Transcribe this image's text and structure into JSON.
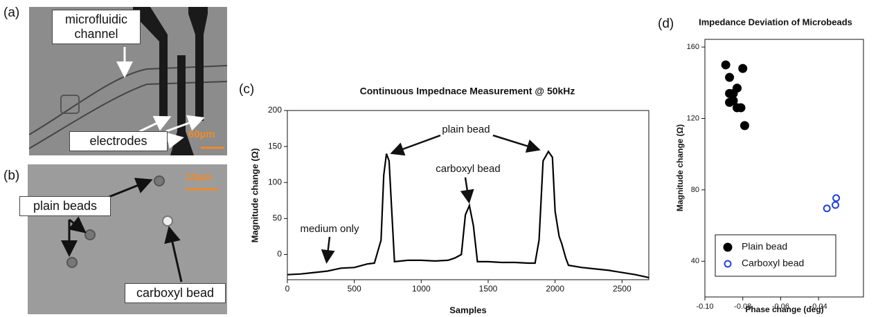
{
  "panels": [
    {
      "label": "(a)",
      "annotations": [
        "microfluidic channel",
        "electrodes"
      ],
      "scale_bar": "60µm"
    },
    {
      "label": "(b)",
      "annotations": [
        "plain beads",
        "carboxyl bead"
      ],
      "scale_bar": "10µm"
    }
  ],
  "chart_data": [
    {
      "type": "line",
      "panel_label": "(c)",
      "title": "Continuous Impednace Measurement @ 50kHz",
      "x_label": "Samples",
      "y_label": "Magnitude change (Ω)",
      "annotations": [
        "plain bead",
        "carboxyl bead",
        "medium only"
      ],
      "x": [
        0,
        100,
        200,
        300,
        400,
        500,
        600,
        650,
        700,
        720,
        740,
        760,
        780,
        800,
        900,
        1000,
        1100,
        1200,
        1250,
        1300,
        1330,
        1360,
        1390,
        1420,
        1500,
        1600,
        1700,
        1800,
        1850,
        1880,
        1910,
        1950,
        1980,
        2000,
        2030,
        2050,
        2080,
        2100,
        2200,
        2300,
        2400,
        2500,
        2600,
        2700
      ],
      "values": [
        -28,
        -27,
        -25,
        -23,
        -19,
        -18,
        -13,
        -12,
        20,
        110,
        140,
        130,
        60,
        -10,
        -8,
        -8,
        -9,
        -8,
        -5,
        0,
        55,
        68,
        40,
        -10,
        -10,
        -11,
        -11,
        -12,
        -12,
        20,
        130,
        143,
        135,
        60,
        25,
        15,
        -5,
        -15,
        -18,
        -20,
        -22,
        -25,
        -28,
        -32
      ],
      "color": "#000000",
      "xlim": [
        0,
        2700
      ],
      "xticks": [
        0,
        500,
        1000,
        1500,
        2000,
        2500
      ],
      "ylim": [
        -35,
        200
      ],
      "yticks": [
        0,
        50,
        100,
        150,
        200
      ]
    },
    {
      "type": "scatter",
      "panel_label": "(d)",
      "title": "Impedance Deviation of Microbeads",
      "x_label": "Phase change (deg)",
      "y_label": "Magnitude change (Ω)",
      "series": [
        {
          "name": "Plain bead",
          "color": "#000000",
          "marker": "filled",
          "x": [
            -0.089,
            -0.08,
            -0.087,
            -0.087,
            -0.085,
            -0.083,
            -0.087,
            -0.085,
            -0.083,
            -0.081,
            -0.079
          ],
          "values": [
            150,
            148,
            143,
            134,
            134,
            137,
            129,
            130,
            126,
            126,
            116
          ]
        },
        {
          "name": "Carboxyl bead",
          "color": "#1f3fe0",
          "marker": "open",
          "x": [
            -0.0356,
            -0.0311,
            -0.0307
          ],
          "values": [
            69.6,
            71.5,
            75.4
          ]
        }
      ],
      "xlim": [
        -0.1,
        -0.0163
      ],
      "xticks": [
        {
          "value": -0.1,
          "label": "-0.10"
        },
        -0.08,
        -0.06,
        -0.04
      ],
      "ylim": [
        20,
        164.3
      ],
      "yticks": [
        40,
        80,
        120,
        160
      ],
      "legend": "lower center"
    }
  ]
}
